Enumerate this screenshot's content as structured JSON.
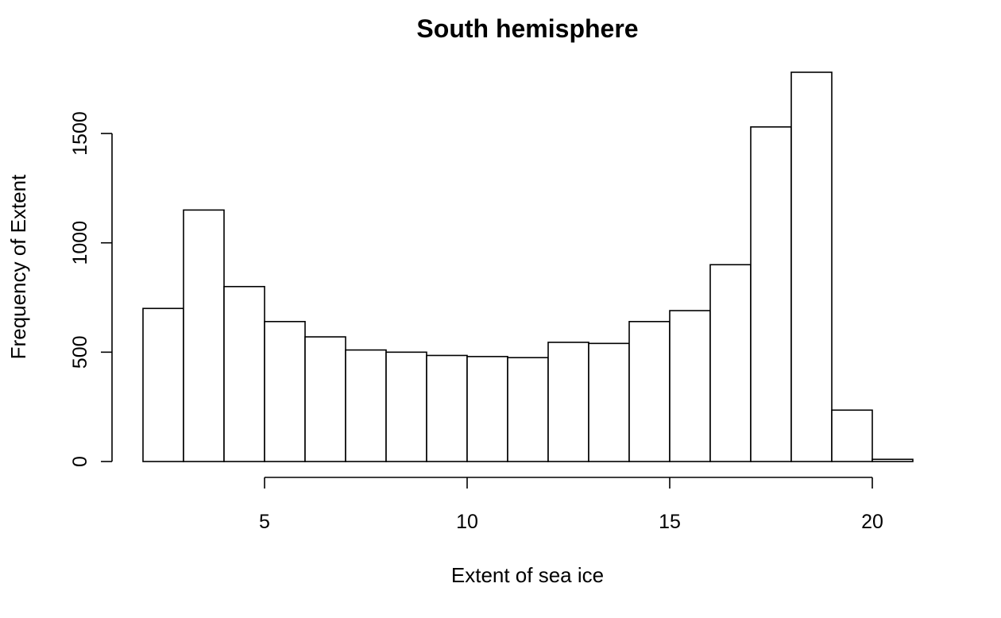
{
  "chart_data": {
    "type": "bar",
    "title": "South hemisphere",
    "xlabel": "Extent of sea ice",
    "ylabel": "Frequency of Extent",
    "bins": [
      {
        "from": 2,
        "to": 3,
        "count": 700
      },
      {
        "from": 3,
        "to": 4,
        "count": 1150
      },
      {
        "from": 4,
        "to": 5,
        "count": 800
      },
      {
        "from": 5,
        "to": 6,
        "count": 640
      },
      {
        "from": 6,
        "to": 7,
        "count": 570
      },
      {
        "from": 7,
        "to": 8,
        "count": 510
      },
      {
        "from": 8,
        "to": 9,
        "count": 500
      },
      {
        "from": 9,
        "to": 10,
        "count": 485
      },
      {
        "from": 10,
        "to": 11,
        "count": 480
      },
      {
        "from": 11,
        "to": 12,
        "count": 475
      },
      {
        "from": 12,
        "to": 13,
        "count": 545
      },
      {
        "from": 13,
        "to": 14,
        "count": 540
      },
      {
        "from": 14,
        "to": 15,
        "count": 640
      },
      {
        "from": 15,
        "to": 16,
        "count": 690
      },
      {
        "from": 16,
        "to": 17,
        "count": 900
      },
      {
        "from": 17,
        "to": 18,
        "count": 1530
      },
      {
        "from": 18,
        "to": 19,
        "count": 1780
      },
      {
        "from": 19,
        "to": 20,
        "count": 235
      },
      {
        "from": 20,
        "to": 21,
        "count": 10
      }
    ],
    "x_ticks": [
      5,
      10,
      15,
      20
    ],
    "x_tick_labels": [
      "5",
      "10",
      "15",
      "20"
    ],
    "y_ticks": [
      0,
      500,
      1000,
      1500
    ],
    "y_tick_labels": [
      "0",
      "500",
      "1000",
      "1500"
    ],
    "xlim": [
      2,
      21
    ],
    "ylim": [
      0,
      1780
    ],
    "grid": false,
    "legend": "none",
    "colors": {
      "bar_fill": "#ffffff",
      "bar_stroke": "#000000",
      "axis": "#000000",
      "text": "#000000",
      "background": "#ffffff"
    }
  }
}
